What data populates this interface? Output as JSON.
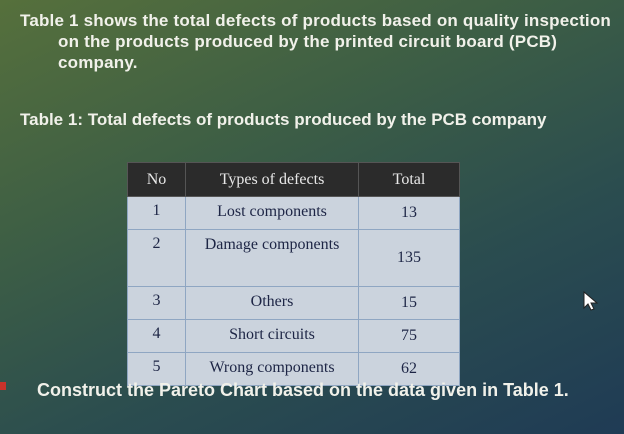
{
  "intro": "Table 1 shows the total defects of products based on quality inspection on the products produced by the printed circuit board (PCB) company.",
  "table": {
    "caption": "Table 1: Total defects of products produced by the PCB company",
    "header": [
      "No",
      "Types of defects",
      "Total"
    ],
    "rows": [
      [
        1,
        "Lost components",
        13
      ],
      [
        2,
        "Damage components",
        135
      ],
      [
        3,
        "Others",
        15
      ],
      [
        4,
        "Short circuits",
        75
      ],
      [
        5,
        "Wrong components",
        62
      ]
    ]
  },
  "task": "Construct the Pareto Chart based on the data given in Table 1."
}
